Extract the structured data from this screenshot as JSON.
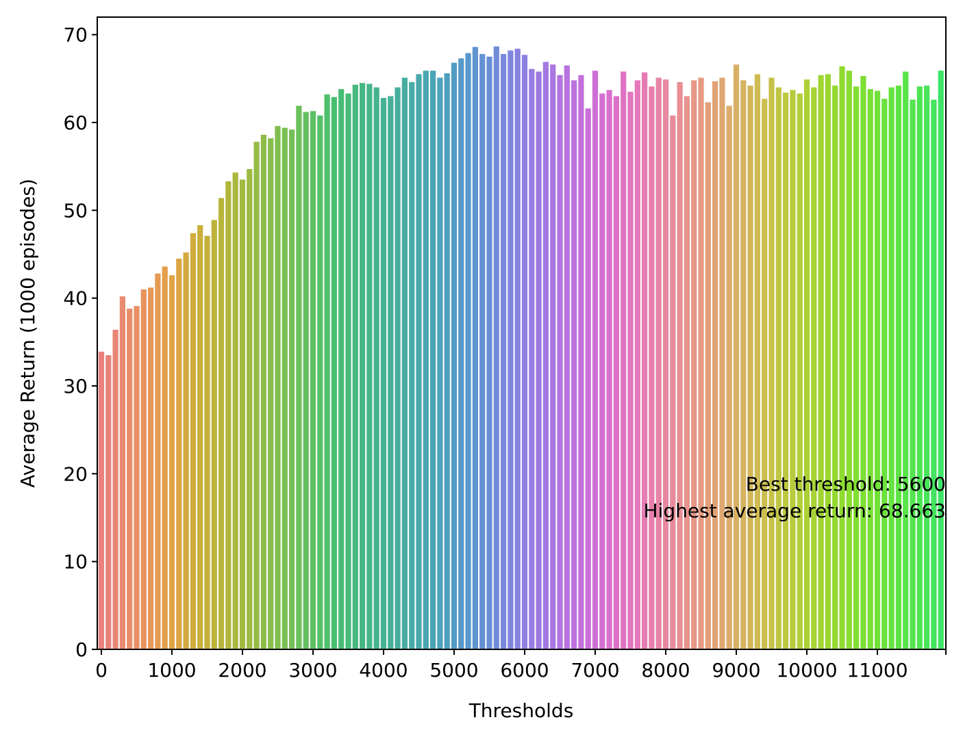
{
  "chart_data": {
    "type": "bar",
    "title": "",
    "xlabel": "Thresholds",
    "ylabel": "Average Return (1000 episodes)",
    "ylim": [
      0,
      72
    ],
    "y_ticks": [
      0,
      10,
      20,
      30,
      40,
      50,
      60,
      70
    ],
    "x_tick_labels": [
      "0",
      "1000",
      "2000",
      "3000",
      "4000",
      "5000",
      "6000",
      "7000",
      "8000",
      "9000",
      "10000",
      "11000"
    ],
    "x_tick_step": 1000,
    "category_step": 100,
    "grid": false,
    "legend": "none",
    "annotation": {
      "line1": "Best threshold: 5600",
      "line2": "Highest average return: 68.663"
    },
    "categories": [
      0,
      100,
      200,
      300,
      400,
      500,
      600,
      700,
      800,
      900,
      1000,
      1100,
      1200,
      1300,
      1400,
      1500,
      1600,
      1700,
      1800,
      1900,
      2000,
      2100,
      2200,
      2300,
      2400,
      2500,
      2600,
      2700,
      2800,
      2900,
      3000,
      3100,
      3200,
      3300,
      3400,
      3500,
      3600,
      3700,
      3800,
      3900,
      4000,
      4100,
      4200,
      4300,
      4400,
      4500,
      4600,
      4700,
      4800,
      4900,
      5000,
      5100,
      5200,
      5300,
      5400,
      5500,
      5600,
      5700,
      5800,
      5900,
      6000,
      6100,
      6200,
      6300,
      6400,
      6500,
      6600,
      6700,
      6800,
      6900,
      7000,
      7100,
      7200,
      7300,
      7400,
      7500,
      7600,
      7700,
      7800,
      7900,
      8000,
      8100,
      8200,
      8300,
      8400,
      8500,
      8600,
      8700,
      8800,
      8900,
      9000,
      9100,
      9200,
      9300,
      9400,
      9500,
      9600,
      9700,
      9800,
      9900,
      10000,
      10100,
      10200,
      10300,
      10400,
      10500,
      10600,
      10700,
      10800,
      10900,
      11000,
      11100,
      11200,
      11300,
      11400,
      11500,
      11600,
      11700,
      11800,
      11900
    ],
    "values": [
      33.9,
      33.5,
      36.4,
      40.2,
      38.8,
      39.1,
      41.0,
      41.2,
      42.8,
      43.6,
      42.6,
      44.5,
      45.2,
      47.4,
      48.3,
      47.1,
      48.9,
      51.4,
      53.3,
      54.3,
      53.5,
      54.7,
      57.8,
      58.6,
      58.2,
      59.6,
      59.4,
      59.2,
      61.9,
      61.2,
      61.3,
      60.8,
      63.2,
      62.9,
      63.8,
      63.3,
      64.3,
      64.5,
      64.4,
      64.0,
      62.8,
      63.0,
      64.0,
      65.1,
      64.6,
      65.5,
      65.9,
      65.9,
      65.1,
      65.6,
      66.8,
      67.3,
      67.9,
      68.6,
      67.8,
      67.5,
      68.663,
      67.8,
      68.2,
      68.4,
      67.7,
      66.1,
      65.8,
      66.9,
      66.6,
      65.4,
      66.5,
      64.8,
      65.4,
      61.6,
      65.9,
      63.3,
      63.7,
      63.0,
      65.8,
      63.5,
      64.8,
      65.7,
      64.1,
      65.1,
      64.9,
      60.8,
      64.6,
      63.0,
      64.8,
      65.1,
      62.3,
      64.7,
      65.1,
      61.9,
      66.6,
      64.8,
      64.2,
      65.5,
      62.7,
      65.1,
      64.0,
      63.4,
      63.7,
      63.3,
      64.9,
      64.0,
      65.4,
      65.5,
      64.2,
      66.4,
      65.9,
      64.1,
      65.3,
      63.8,
      63.6,
      62.7,
      64.0,
      64.2,
      65.8,
      62.6,
      64.1,
      64.2,
      62.6,
      65.9
    ],
    "colors": [
      "#e8817f",
      "#e8837a",
      "#e98675",
      "#e88a6f",
      "#e88d69",
      "#e89063",
      "#e7945d",
      "#e69857",
      "#e49b52",
      "#e29f4c",
      "#e0a346",
      "#dba642",
      "#d5a93f",
      "#cfac3d",
      "#c9af3b",
      "#c3b13a",
      "#bdb33a",
      "#b7b53b",
      "#b1b63c",
      "#aab83e",
      "#a4b940",
      "#9dba43",
      "#96bb46",
      "#8fbc49",
      "#88bd4c",
      "#81be50",
      "#7abf53",
      "#73bf57",
      "#6bc05b",
      "#64c05f",
      "#5cc063",
      "#55c067",
      "#4dc06b",
      "#47bf70",
      "#46bd75",
      "#46bb7a",
      "#46b97f",
      "#46b784",
      "#46b589",
      "#46b38e",
      "#46b293",
      "#46b098",
      "#47ae9d",
      "#47aca2",
      "#48aaa7",
      "#49a8ac",
      "#4aa6b1",
      "#4ba3b6",
      "#4da1bb",
      "#4f9fc0",
      "#529cc4",
      "#5599c8",
      "#5997cc",
      "#5e94d0",
      "#6491d3",
      "#6a8ed6",
      "#718bd9",
      "#7888db",
      "#7f85dd",
      "#8782df",
      "#8e80e0",
      "#957de1",
      "#9c7ae1",
      "#a378e1",
      "#aa76e1",
      "#b074e0",
      "#b772df",
      "#bd71dd",
      "#c370db",
      "#c96fd8",
      "#ce6fd5",
      "#d36fd1",
      "#d870cd",
      "#dc71c8",
      "#df73c3",
      "#e275be",
      "#e478b8",
      "#e57bb2",
      "#e67fac",
      "#e783a6",
      "#e787a0",
      "#e78b9a",
      "#e78f94",
      "#e7938e",
      "#e69788",
      "#e59b82",
      "#e39f7c",
      "#e1a376",
      "#dfa770",
      "#dcab6a",
      "#d9af64",
      "#d6b35e",
      "#d2b759",
      "#cebb53",
      "#cabf4e",
      "#c6c249",
      "#c1c544",
      "#bcc840",
      "#b7cb3c",
      "#b2ce39",
      "#acd036",
      "#a7d334",
      "#a1d532",
      "#9bd731",
      "#95d930",
      "#8fdb30",
      "#89dc31",
      "#83de32",
      "#7ddf34",
      "#77e036",
      "#71e139",
      "#6be23c",
      "#65e340",
      "#5fe344",
      "#59e449",
      "#53e44e",
      "#4de453",
      "#48e459",
      "#43e45f",
      "#3ee465"
    ]
  }
}
